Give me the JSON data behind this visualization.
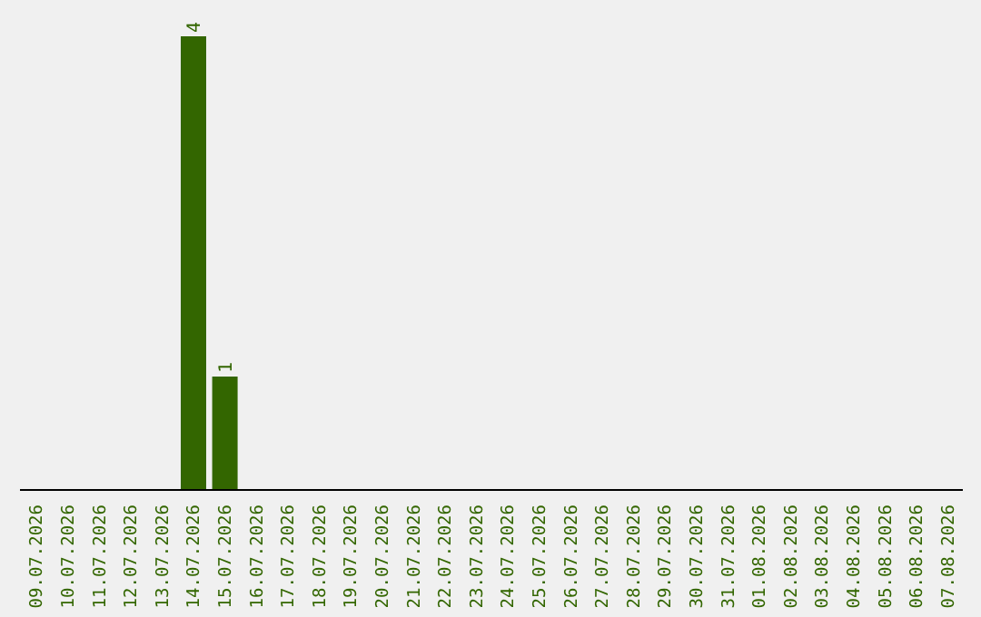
{
  "chart_data": {
    "type": "bar",
    "categories": [
      "09.07.2026",
      "10.07.2026",
      "11.07.2026",
      "12.07.2026",
      "13.07.2026",
      "14.07.2026",
      "15.07.2026",
      "16.07.2026",
      "17.07.2026",
      "18.07.2026",
      "19.07.2026",
      "20.07.2026",
      "21.07.2026",
      "22.07.2026",
      "23.07.2026",
      "24.07.2026",
      "25.07.2026",
      "26.07.2026",
      "27.07.2026",
      "28.07.2026",
      "29.07.2026",
      "30.07.2026",
      "31.07.2026",
      "01.08.2026",
      "02.08.2026",
      "03.08.2026",
      "04.08.2026",
      "05.08.2026",
      "06.08.2026",
      "07.08.2026"
    ],
    "values": [
      0,
      0,
      0,
      0,
      0,
      4,
      1,
      0,
      0,
      0,
      0,
      0,
      0,
      0,
      0,
      0,
      0,
      0,
      0,
      0,
      0,
      0,
      0,
      0,
      0,
      0,
      0,
      0,
      0,
      0
    ],
    "value_labels": [
      null,
      null,
      null,
      null,
      null,
      "4",
      "1",
      null,
      null,
      null,
      null,
      null,
      null,
      null,
      null,
      null,
      null,
      null,
      null,
      null,
      null,
      null,
      null,
      null,
      null,
      null,
      null,
      null,
      null,
      null
    ],
    "color": "#336600",
    "grid": false,
    "legend": false
  }
}
